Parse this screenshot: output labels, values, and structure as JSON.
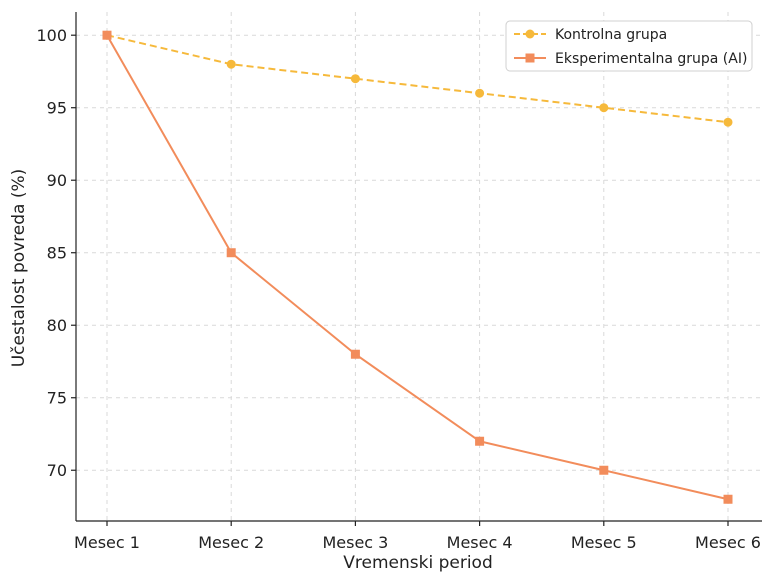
{
  "chart_data": {
    "type": "line",
    "title": "",
    "xlabel": "Vremenski period",
    "ylabel": "Učestalost povreda (%)",
    "categories": [
      "Mesec 1",
      "Mesec 2",
      "Mesec 3",
      "Mesec 4",
      "Mesec 5",
      "Mesec 6"
    ],
    "ylim": [
      66.5,
      101.6
    ],
    "yticks": [
      70,
      75,
      80,
      85,
      90,
      95,
      100
    ],
    "grid": true,
    "legend_position": "top-right",
    "series": [
      {
        "name": "Kontrolna grupa",
        "values": [
          100,
          98,
          97,
          96,
          95,
          94
        ],
        "color": "#F6B93B",
        "line_style": "dashed",
        "marker": "circle"
      },
      {
        "name": "Eksperimentalna grupa (AI)",
        "values": [
          100,
          85,
          78,
          72,
          70,
          68
        ],
        "color": "#F28C5B",
        "line_style": "solid",
        "marker": "square"
      }
    ]
  }
}
